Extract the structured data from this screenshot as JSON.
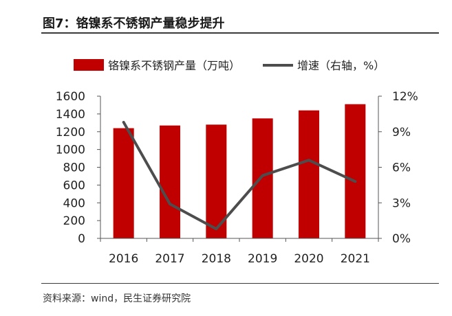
{
  "figure": {
    "title": "图7：铬镍系不锈钢产量稳步提升",
    "source": "资料来源：wind，民生证券研究院"
  },
  "colors": {
    "bar": "#c00000",
    "line": "#4d4d4d"
  },
  "chart_data": {
    "type": "bar+line",
    "categories": [
      "2016",
      "2017",
      "2018",
      "2019",
      "2020",
      "2021"
    ],
    "series": [
      {
        "name": "铬镍系不锈钢产量（万吨）",
        "type": "bar",
        "axis": "left",
        "values": [
          1240,
          1270,
          1280,
          1350,
          1440,
          1510
        ]
      },
      {
        "name": "增速（右轴，%）",
        "type": "line",
        "axis": "right",
        "values": [
          9.8,
          2.9,
          0.8,
          5.3,
          6.6,
          4.8
        ]
      }
    ],
    "left_axis": {
      "min": 0,
      "max": 1600,
      "ticks": [
        "0",
        "200",
        "400",
        "600",
        "800",
        "1000",
        "1200",
        "1400",
        "1600"
      ]
    },
    "right_axis": {
      "min": 0,
      "max": 12,
      "ticks": [
        "0%",
        "3%",
        "6%",
        "9%",
        "12%"
      ]
    },
    "legend_position": "top",
    "grid": false
  }
}
